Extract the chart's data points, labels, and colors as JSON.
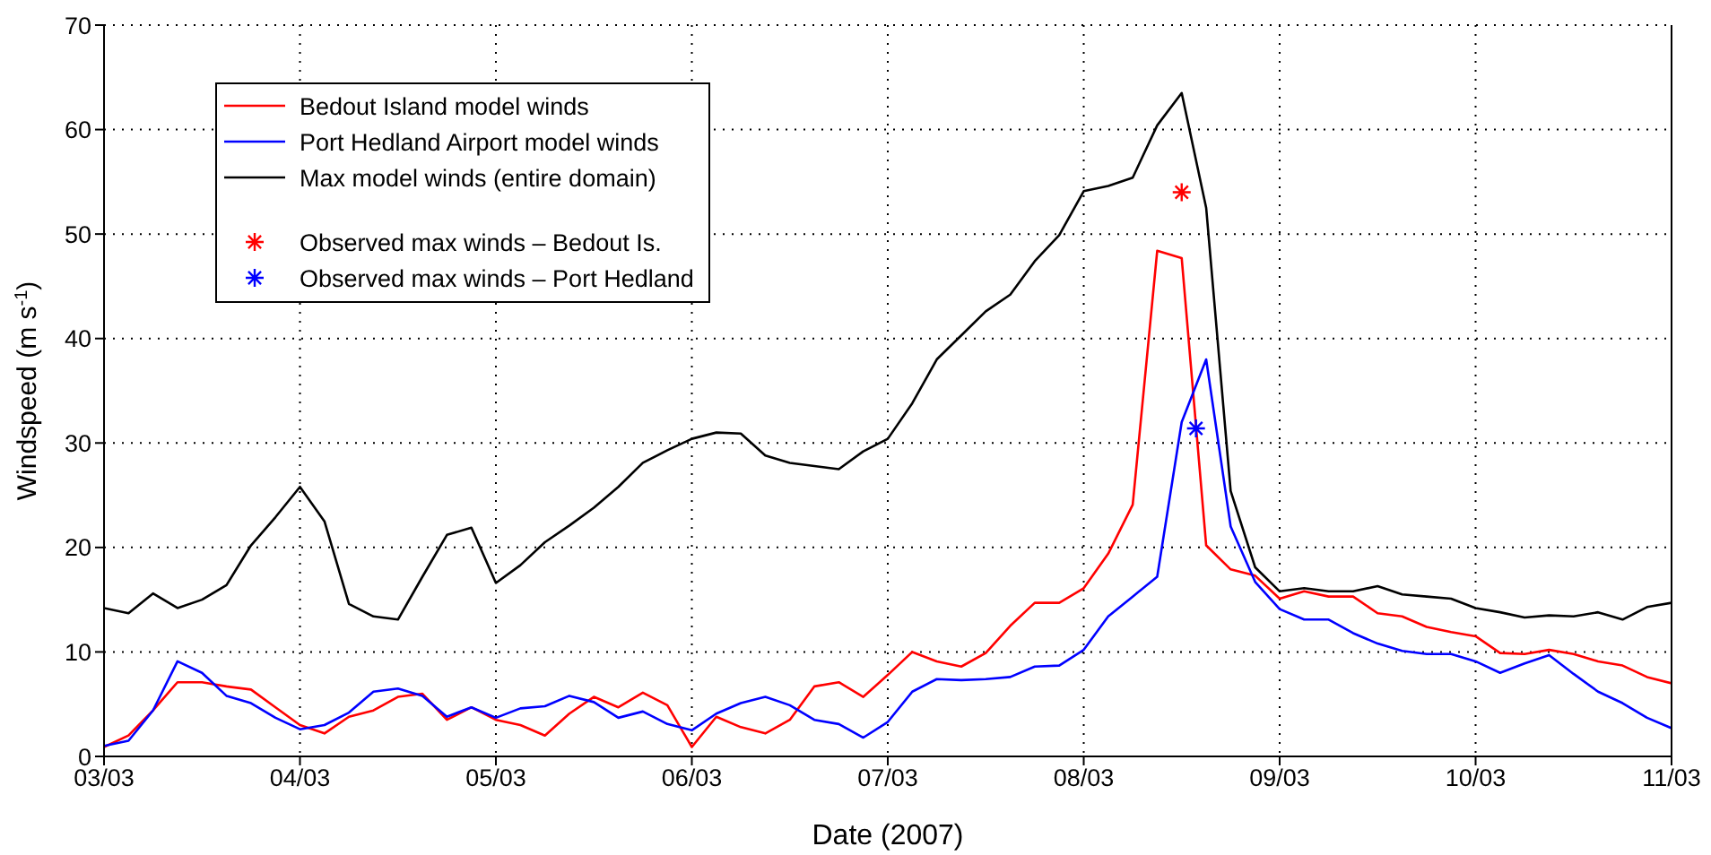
{
  "chart_data": {
    "type": "line",
    "xlabel": "Date (2007)",
    "ylabel": "Windspeed (m s$^{-1}$)",
    "x": [
      "2007-03-03T00:00",
      "2007-03-03T03:00",
      "2007-03-03T06:00",
      "2007-03-03T09:00",
      "2007-03-03T12:00",
      "2007-03-03T15:00",
      "2007-03-03T18:00",
      "2007-03-03T21:00",
      "2007-03-04T00:00",
      "2007-03-04T03:00",
      "2007-03-04T06:00",
      "2007-03-04T09:00",
      "2007-03-04T12:00",
      "2007-03-04T15:00",
      "2007-03-04T18:00",
      "2007-03-04T21:00",
      "2007-03-05T00:00",
      "2007-03-05T03:00",
      "2007-03-05T06:00",
      "2007-03-05T09:00",
      "2007-03-05T12:00",
      "2007-03-05T15:00",
      "2007-03-05T18:00",
      "2007-03-05T21:00",
      "2007-03-06T00:00",
      "2007-03-06T03:00",
      "2007-03-06T06:00",
      "2007-03-06T09:00",
      "2007-03-06T12:00",
      "2007-03-06T15:00",
      "2007-03-06T18:00",
      "2007-03-06T21:00",
      "2007-03-07T00:00",
      "2007-03-07T03:00",
      "2007-03-07T06:00",
      "2007-03-07T09:00",
      "2007-03-07T12:00",
      "2007-03-07T15:00",
      "2007-03-07T18:00",
      "2007-03-07T21:00",
      "2007-03-08T00:00",
      "2007-03-08T03:00",
      "2007-03-08T06:00",
      "2007-03-08T09:00",
      "2007-03-08T12:00",
      "2007-03-08T15:00",
      "2007-03-08T18:00",
      "2007-03-08T21:00",
      "2007-03-09T00:00",
      "2007-03-09T03:00",
      "2007-03-09T06:00",
      "2007-03-09T09:00",
      "2007-03-09T12:00",
      "2007-03-09T15:00",
      "2007-03-09T18:00",
      "2007-03-09T21:00",
      "2007-03-10T00:00",
      "2007-03-10T03:00",
      "2007-03-10T06:00",
      "2007-03-10T09:00",
      "2007-03-10T12:00",
      "2007-03-10T15:00",
      "2007-03-10T18:00",
      "2007-03-10T21:00",
      "2007-03-11T00:00"
    ],
    "series": [
      {
        "name": "Bedout Island model winds",
        "color": "#ff0000",
        "values": [
          0.9,
          2.0,
          4.4,
          7.1,
          7.1,
          6.7,
          6.4,
          4.7,
          3.0,
          2.2,
          3.8,
          4.4,
          5.7,
          6.0,
          3.5,
          4.7,
          3.5,
          3.0,
          2.0,
          4.1,
          5.7,
          4.7,
          6.1,
          4.9,
          0.9,
          3.8,
          2.8,
          2.2,
          3.5,
          6.7,
          7.1,
          5.7,
          7.8,
          10.0,
          9.1,
          8.6,
          9.9,
          12.5,
          14.7,
          14.7,
          16.1,
          19.4,
          24.1,
          48.4,
          47.7,
          20.2,
          17.9,
          17.3,
          15.1,
          15.8,
          15.3,
          15.3,
          13.7,
          13.4,
          12.4,
          11.9,
          11.5,
          9.9,
          9.8,
          10.2,
          9.8,
          9.1,
          8.7,
          7.6,
          7.0
        ]
      },
      {
        "name": "Port Hedland Airport model winds",
        "color": "#0000ff",
        "values": [
          1.0,
          1.5,
          4.4,
          9.1,
          8.0,
          5.8,
          5.1,
          3.7,
          2.6,
          3.0,
          4.2,
          6.2,
          6.5,
          5.8,
          3.8,
          4.7,
          3.7,
          4.6,
          4.8,
          5.8,
          5.2,
          3.7,
          4.3,
          3.1,
          2.5,
          4.1,
          5.1,
          5.7,
          4.9,
          3.5,
          3.1,
          1.8,
          3.3,
          6.2,
          7.4,
          7.3,
          7.4,
          7.6,
          8.6,
          8.7,
          10.2,
          13.4,
          15.3,
          17.2,
          32.0,
          38.0,
          22.0,
          16.7,
          14.1,
          13.1,
          13.1,
          11.8,
          10.8,
          10.1,
          9.8,
          9.8,
          9.1,
          8.0,
          8.9,
          9.7,
          7.9,
          6.2,
          5.1,
          3.7,
          2.7
        ]
      },
      {
        "name": "Max model winds (entire domain)",
        "color": "#000000",
        "values": [
          14.2,
          13.7,
          15.6,
          14.2,
          15.0,
          16.4,
          20.2,
          22.9,
          25.8,
          22.5,
          14.6,
          13.4,
          13.1,
          17.2,
          21.2,
          21.9,
          16.6,
          18.3,
          20.5,
          22.1,
          23.8,
          25.8,
          28.1,
          29.3,
          30.4,
          31.0,
          30.9,
          28.8,
          28.1,
          27.8,
          27.5,
          29.2,
          30.4,
          33.8,
          38.0,
          40.3,
          42.6,
          44.2,
          47.4,
          49.9,
          54.1,
          54.6,
          55.4,
          60.4,
          63.5,
          52.5,
          25.4,
          18.1,
          15.8,
          16.1,
          15.8,
          15.8,
          16.3,
          15.5,
          15.3,
          15.1,
          14.2,
          13.8,
          13.3,
          13.5,
          13.4,
          13.8,
          13.1,
          14.3,
          14.7
        ]
      },
      {
        "name": "Observed max winds – Bedout Is.",
        "type": "scatter",
        "marker": "cross",
        "color": "#ff0000",
        "x": [
          "2007-03-08T12:00"
        ],
        "values": [
          54.0
        ]
      },
      {
        "name": "Observed max winds – Port Hedland",
        "type": "scatter",
        "marker": "cross",
        "color": "#0000ff",
        "x": [
          "2007-03-08T13:45"
        ],
        "values": [
          31.4
        ]
      }
    ],
    "xlim": [
      "2007-03-03T00:00",
      "2007-03-11T00:00"
    ],
    "xticks": [
      {
        "value": "2007-03-03T00:00",
        "label": "03/03"
      },
      {
        "value": "2007-03-04T00:00",
        "label": "04/03"
      },
      {
        "value": "2007-03-05T00:00",
        "label": "05/03"
      },
      {
        "value": "2007-03-06T00:00",
        "label": "06/03"
      },
      {
        "value": "2007-03-07T00:00",
        "label": "07/03"
      },
      {
        "value": "2007-03-08T00:00",
        "label": "08/03"
      },
      {
        "value": "2007-03-09T00:00",
        "label": "09/03"
      },
      {
        "value": "2007-03-10T00:00",
        "label": "10/03"
      },
      {
        "value": "2007-03-11T00:00",
        "label": "11/03"
      }
    ],
    "ylim": [
      0,
      70
    ],
    "yticks": [
      0,
      10,
      20,
      30,
      40,
      50,
      60,
      70
    ],
    "grid": true,
    "legend": "top left"
  }
}
